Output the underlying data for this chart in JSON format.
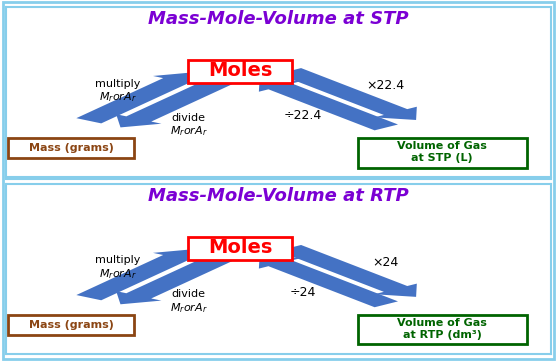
{
  "title_stp": "Mass-Mole-Volume at STP",
  "title_rtp": "Mass-Mole-Volume at RTP",
  "title_color": "#7B00D4",
  "title_fontsize": 13,
  "moles_color": "#FF0000",
  "moles_fontsize": 14,
  "mass_color": "#8B4513",
  "volume_color": "#006400",
  "arrow_color": "#4472C4",
  "outer_border_color": "#87CEEB",
  "multiply_text": "multiply",
  "multiply_math": "$M_r or A_r$",
  "divide_text": "divide",
  "divide_math": "$M_r or A_r$",
  "x224_label": "×22.4",
  "div224_label": "÷22.4",
  "x24_label": "×24",
  "div24_label": "÷24",
  "mass_label": "Mass (grams)",
  "volume_stp_label": "Volume of Gas\nat STP (L)",
  "volume_rtp_label": "Volume of Gas\nat RTP (dm³)"
}
